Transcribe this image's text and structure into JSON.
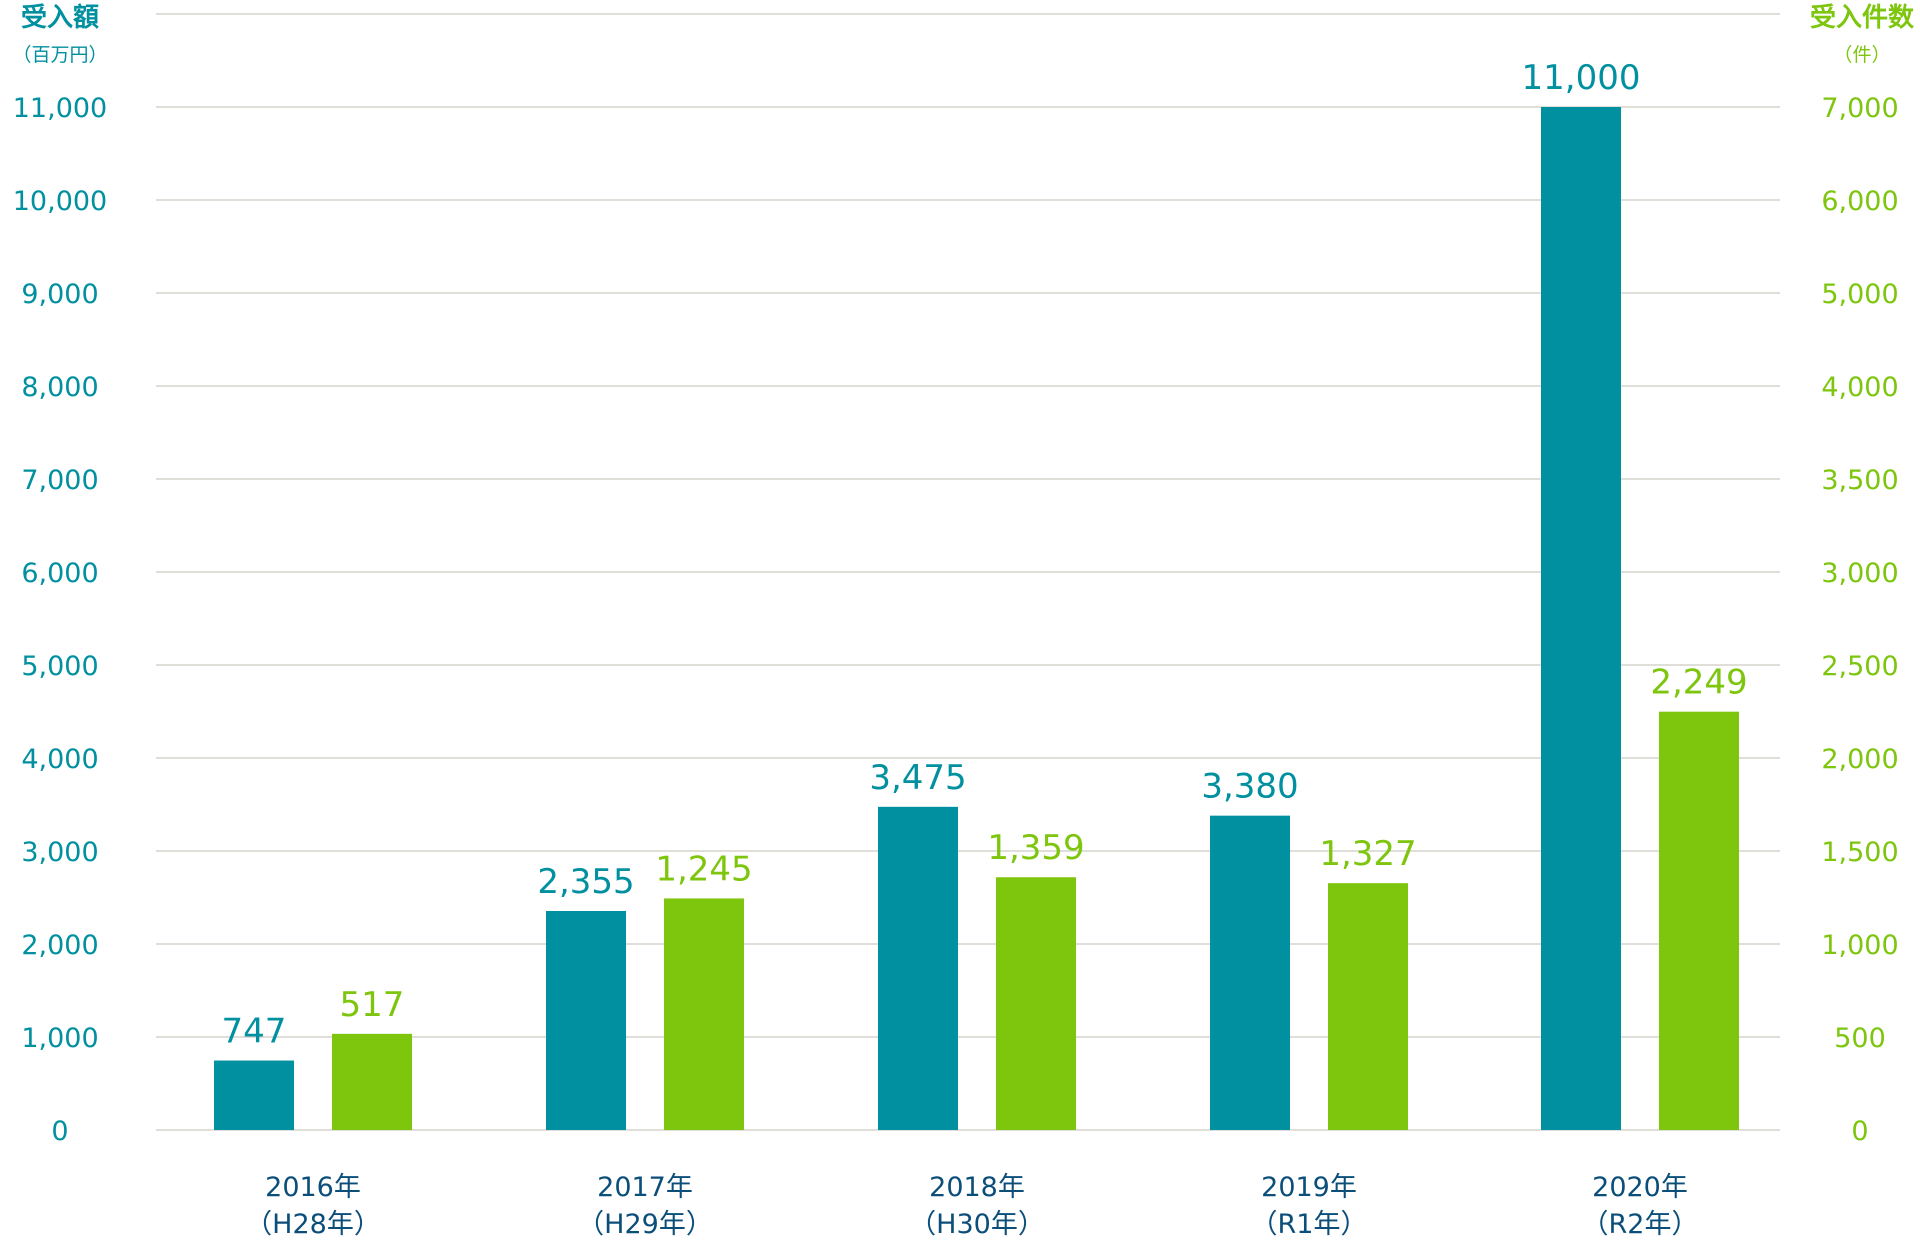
{
  "chart_data": {
    "type": "bar",
    "left_axis": {
      "title": "受入額",
      "unit": "（百万円）",
      "ticks": [
        0,
        1000,
        2000,
        3000,
        4000,
        5000,
        6000,
        7000,
        8000,
        9000,
        10000,
        11000
      ],
      "tick_labels": [
        "0",
        "1,000",
        "2,000",
        "3,000",
        "4,000",
        "5,000",
        "6,000",
        "7,000",
        "8,000",
        "9,000",
        "10,000",
        "11,000"
      ],
      "color": "#00909f"
    },
    "right_axis": {
      "title": "受入件数",
      "unit": "（件）",
      "tick_labels": [
        "0",
        "500",
        "1,000",
        "1,500",
        "2,000",
        "2,500",
        "3,000",
        "3,500",
        "4,000",
        "5,000",
        "6,000",
        "7,000"
      ],
      "color": "#7dc60d"
    },
    "categories": [
      [
        "2016年",
        "（H28年）"
      ],
      [
        "2017年",
        "（H29年）"
      ],
      [
        "2018年",
        "（H30年）"
      ],
      [
        "2019年",
        "（R1年）"
      ],
      [
        "2020年",
        "（R2年）"
      ]
    ],
    "series": [
      {
        "axis": "left",
        "color": "#00909f",
        "values": [
          747,
          2355,
          3475,
          3380,
          11000
        ],
        "labels": [
          "747",
          "2,355",
          "3,475",
          "3,380",
          "11,000"
        ]
      },
      {
        "axis": "right",
        "color": "#7dc60d",
        "values": [
          517,
          1245,
          1359,
          1327,
          2249
        ],
        "labels": [
          "517",
          "1,245",
          "1,359",
          "1,327",
          "2,249"
        ]
      }
    ],
    "category_label_color": "#0b4e7a",
    "grid": true,
    "grid_color": "#d6d4cc"
  }
}
